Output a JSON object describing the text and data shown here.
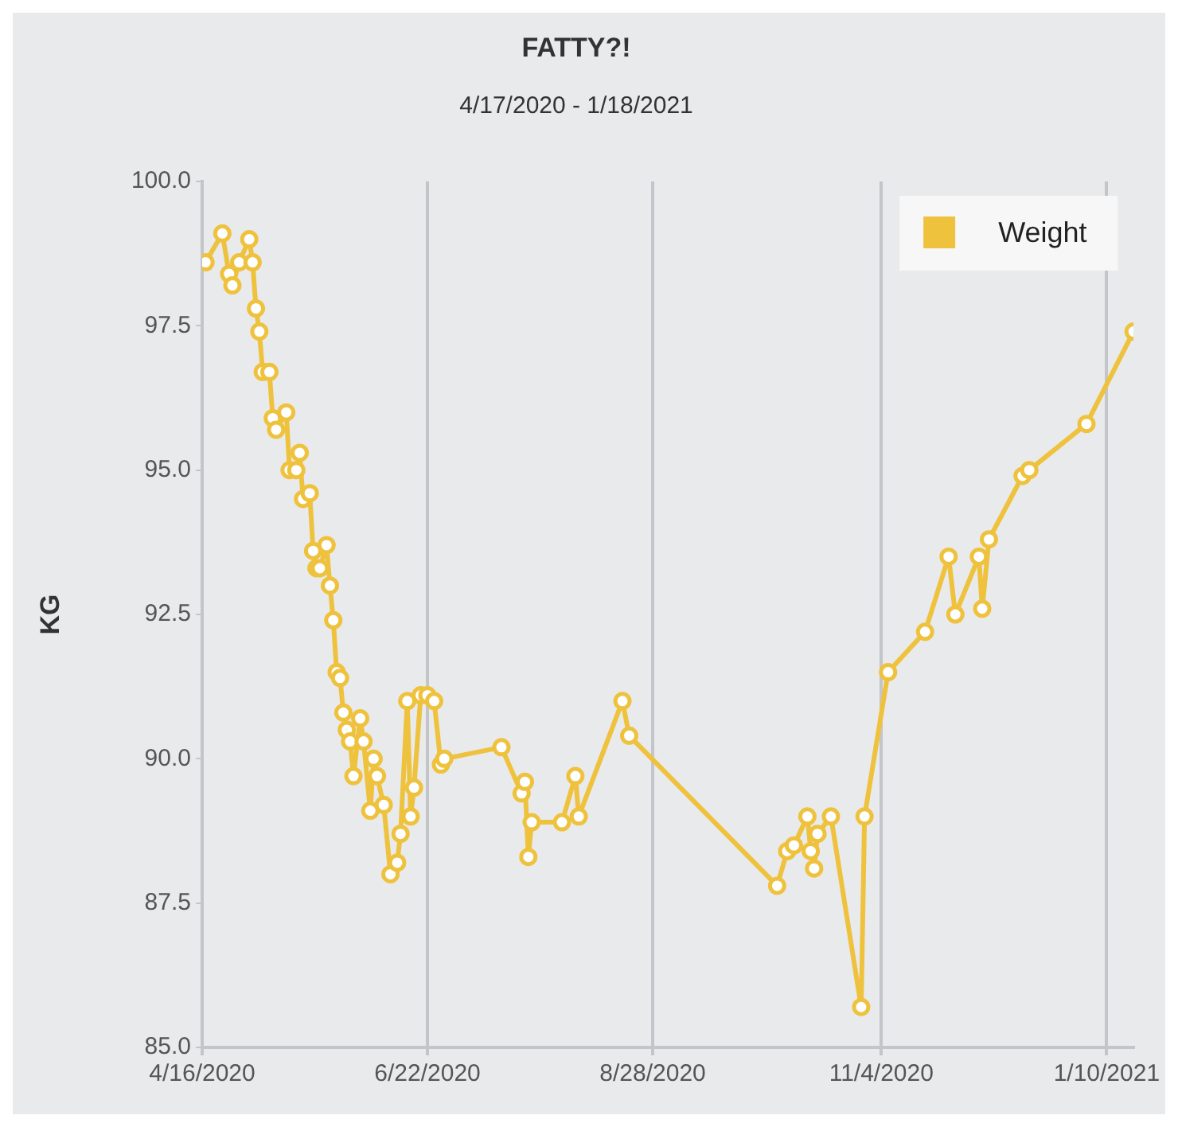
{
  "chart_data": {
    "type": "line",
    "title": "FATTY?!",
    "subtitle": "4/17/2020 - 1/18/2021",
    "ylabel": "KG",
    "x": [
      "2020-04-17",
      "2020-04-22",
      "2020-04-24",
      "2020-04-25",
      "2020-04-27",
      "2020-04-30",
      "2020-05-01",
      "2020-05-02",
      "2020-05-03",
      "2020-05-04",
      "2020-05-06",
      "2020-05-07",
      "2020-05-08",
      "2020-05-11",
      "2020-05-12",
      "2020-05-14",
      "2020-05-15",
      "2020-05-16",
      "2020-05-18",
      "2020-05-19",
      "2020-05-20",
      "2020-05-21",
      "2020-05-23",
      "2020-05-24",
      "2020-05-25",
      "2020-05-26",
      "2020-05-27",
      "2020-05-28",
      "2020-05-29",
      "2020-05-30",
      "2020-05-31",
      "2020-06-02",
      "2020-06-03",
      "2020-06-05",
      "2020-06-06",
      "2020-06-07",
      "2020-06-09",
      "2020-06-11",
      "2020-06-13",
      "2020-06-14",
      "2020-06-16",
      "2020-06-17",
      "2020-06-18",
      "2020-06-20",
      "2020-06-22",
      "2020-06-24",
      "2020-06-26",
      "2020-06-27",
      "2020-07-14",
      "2020-07-20",
      "2020-07-21",
      "2020-07-22",
      "2020-07-23",
      "2020-08-01",
      "2020-08-05",
      "2020-08-06",
      "2020-08-19",
      "2020-08-21",
      "2020-10-04",
      "2020-10-07",
      "2020-10-09",
      "2020-10-13",
      "2020-10-14",
      "2020-10-15",
      "2020-10-16",
      "2020-10-20",
      "2020-10-29",
      "2020-10-30",
      "2020-11-06",
      "2020-11-17",
      "2020-11-24",
      "2020-11-26",
      "2020-12-03",
      "2020-12-04",
      "2020-12-06",
      "2020-12-16",
      "2020-12-18",
      "2021-01-04",
      "2021-01-18"
    ],
    "series": [
      {
        "name": "Weight",
        "color": "#efc23e",
        "values": [
          98.6,
          99.1,
          98.4,
          98.2,
          98.6,
          99.0,
          98.6,
          97.8,
          97.4,
          96.7,
          96.7,
          95.9,
          95.7,
          96.0,
          95.0,
          95.0,
          95.3,
          94.5,
          94.6,
          93.6,
          93.3,
          93.3,
          93.7,
          93.0,
          92.4,
          91.5,
          91.4,
          90.8,
          90.5,
          90.3,
          89.7,
          90.7,
          90.3,
          89.1,
          90.0,
          89.7,
          89.2,
          88.0,
          88.2,
          88.7,
          91.0,
          89.0,
          89.5,
          91.1,
          91.1,
          91.0,
          89.9,
          90.0,
          90.2,
          89.4,
          89.6,
          88.3,
          88.9,
          88.9,
          89.7,
          89.0,
          91.0,
          90.4,
          87.8,
          88.4,
          88.5,
          89.0,
          88.4,
          88.1,
          88.7,
          89.0,
          85.7,
          89.0,
          91.5,
          92.2,
          93.5,
          92.5,
          93.5,
          92.6,
          93.8,
          94.9,
          95.0,
          95.8,
          97.4
        ]
      }
    ],
    "xlim": [
      "2020-04-16",
      "2021-01-18"
    ],
    "xticks": [
      {
        "value": "2020-04-16",
        "label": "4/16/2020"
      },
      {
        "value": "2020-06-22",
        "label": "6/22/2020"
      },
      {
        "value": "2020-08-28",
        "label": "8/28/2020"
      },
      {
        "value": "2020-11-04",
        "label": "11/4/2020"
      },
      {
        "value": "2021-01-10",
        "label": "1/10/2021"
      }
    ],
    "ylim": [
      85,
      100
    ],
    "yticks": [
      {
        "value": 85,
        "label": "85.0"
      },
      {
        "value": 87.5,
        "label": "87.5"
      },
      {
        "value": 90,
        "label": "90.0"
      },
      {
        "value": 92.5,
        "label": "92.5"
      },
      {
        "value": 95,
        "label": "95.0"
      },
      {
        "value": 97.5,
        "label": "97.5"
      },
      {
        "value": 100,
        "label": "100.0"
      }
    ],
    "grid": "x",
    "legend": "top right",
    "marker": "circle",
    "line_style": "solid"
  }
}
